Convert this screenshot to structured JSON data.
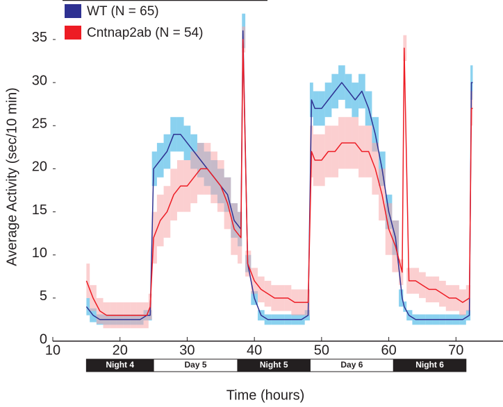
{
  "chart_data": {
    "type": "line",
    "xlabel": "Time (hours)",
    "ylabel": "Average Activity (sec/10 min)",
    "xlim": [
      10,
      77
    ],
    "ylim": [
      0,
      40
    ],
    "xticks": [
      10,
      20,
      30,
      40,
      50,
      60,
      70
    ],
    "yticks": [
      0,
      5,
      10,
      15,
      20,
      25,
      30,
      35
    ],
    "x": [
      15,
      16,
      17,
      18,
      19,
      20,
      21,
      22,
      23,
      24,
      24.5,
      25,
      26,
      27,
      28,
      29,
      30,
      31,
      32,
      33,
      34,
      35,
      36,
      37,
      38,
      38.3,
      39,
      40,
      41,
      42,
      43,
      44,
      45,
      46,
      47,
      48,
      48.5,
      49,
      50,
      51,
      52,
      53,
      54,
      55,
      56,
      57,
      58,
      59,
      60,
      61,
      62,
      62.3,
      63,
      64,
      65,
      66,
      67,
      68,
      69,
      70,
      71,
      72,
      72.3,
      72.5
    ],
    "series": [
      {
        "name": "WT (N = 65)",
        "color": "#2e3192",
        "band_color": "#29abe2",
        "values": [
          4,
          3,
          2.5,
          2.5,
          2.5,
          2.5,
          2.5,
          2.5,
          2.5,
          3,
          3,
          20,
          21,
          22,
          24,
          24,
          23,
          22,
          21,
          20,
          19,
          18,
          17,
          14,
          13,
          36,
          9,
          5,
          3,
          2.5,
          2.5,
          2.5,
          2.5,
          2.5,
          2.5,
          3,
          28,
          27,
          27,
          28,
          29,
          30,
          29,
          28,
          29,
          27,
          24,
          20,
          15,
          12,
          5,
          4,
          3,
          2.5,
          2.5,
          2.5,
          2.5,
          2.5,
          2.5,
          2.5,
          2.5,
          3,
          30,
          30
        ],
        "errors": [
          1,
          0.8,
          0.6,
          0.6,
          0.6,
          0.6,
          0.6,
          0.6,
          0.6,
          0.6,
          0.6,
          2,
          2,
          2,
          2,
          2,
          2,
          2,
          2,
          2,
          2,
          2,
          2,
          2,
          2,
          2,
          1,
          0.8,
          0.6,
          0.6,
          0.6,
          0.6,
          0.6,
          0.6,
          0.6,
          0.6,
          2,
          2,
          2,
          2,
          2,
          2,
          2,
          2,
          2,
          2,
          2,
          2,
          2,
          2,
          1,
          0.6,
          0.6,
          0.6,
          0.6,
          0.6,
          0.6,
          0.6,
          0.6,
          0.6,
          0.6,
          0.6,
          2,
          2
        ]
      },
      {
        "name": "Cntnap2ab (N = 54)",
        "color": "#ed1c24",
        "band_color": "#f7a8aa",
        "values": [
          7,
          5,
          3.5,
          3,
          3,
          3,
          3,
          3,
          3,
          3,
          4,
          12,
          14,
          15,
          17,
          18,
          18,
          19,
          20,
          20,
          19,
          18,
          16,
          13,
          12,
          35,
          9,
          7,
          6,
          5.5,
          5,
          5,
          5,
          4.5,
          4.5,
          4.5,
          22,
          21,
          21,
          22,
          22,
          23,
          23,
          23,
          22,
          22,
          20,
          17,
          13,
          11,
          8,
          34,
          7,
          7,
          6.5,
          6,
          6,
          5.5,
          5,
          5,
          4.5,
          5,
          27,
          27
        ],
        "errors": [
          2,
          1.5,
          1.5,
          1.5,
          1.5,
          1.5,
          1.5,
          1.5,
          1.5,
          1.5,
          1.5,
          3,
          3,
          3,
          3,
          3,
          3,
          3,
          3,
          3,
          3,
          3,
          3,
          3,
          3,
          1.5,
          1.5,
          1.5,
          1.5,
          1.5,
          1.5,
          1.5,
          1.5,
          1.5,
          1.5,
          1.5,
          3,
          3,
          3,
          3,
          3,
          3,
          3,
          3,
          3,
          3,
          3,
          3,
          3,
          3,
          1.5,
          1.5,
          1.5,
          1.5,
          1.5,
          1.5,
          1.5,
          1.5,
          1.5,
          1.5,
          1.5,
          1.5,
          2,
          2
        ]
      }
    ],
    "light_cycle": [
      {
        "label": "Night 4",
        "start": 15,
        "end": 25,
        "dark": true
      },
      {
        "label": "Day 5",
        "start": 25,
        "end": 37.5,
        "dark": false
      },
      {
        "label": "Night 5",
        "start": 37.5,
        "end": 48.3,
        "dark": true
      },
      {
        "label": "Day 6",
        "start": 48.3,
        "end": 60.7,
        "dark": false
      },
      {
        "label": "Night 6",
        "start": 60.7,
        "end": 71.5,
        "dark": true
      }
    ]
  }
}
